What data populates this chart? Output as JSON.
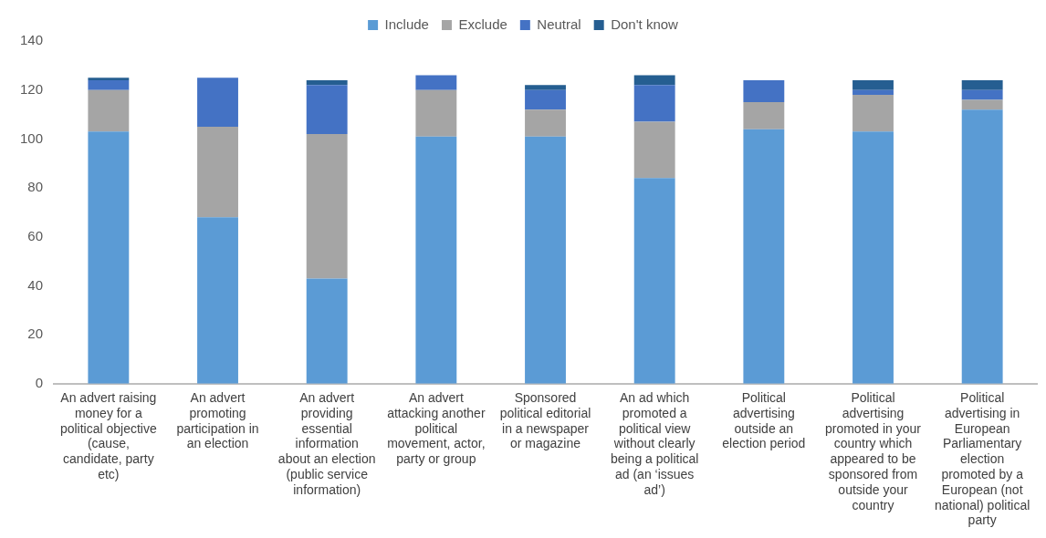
{
  "chart_data": {
    "type": "bar",
    "stacked": true,
    "legend": "top",
    "categories": [
      "An advert raising money for a political objective (cause, candidate, party etc)",
      "An advert promoting participation in an election",
      "An advert providing essential information about an election (public service information)",
      "An advert attacking another political movement, actor, party or group",
      "Sponsored political editorial in a newspaper or magazine",
      "An ad which promoted a political view without clearly being a political ad (an ‘issues ad’)",
      "Political advertising outside an election period",
      "Political advertising promoted in your country which appeared to be sponsored from outside your country",
      "Political advertising in European Parliamentary election promoted by a European (not national) political party"
    ],
    "series": [
      {
        "name": "Include",
        "color": "#5b9bd5",
        "values": [
          103,
          68,
          43,
          101,
          101,
          84,
          104,
          103,
          112
        ]
      },
      {
        "name": "Exclude",
        "color": "#a5a5a5",
        "values": [
          17,
          37,
          59,
          19,
          11,
          23,
          11,
          15,
          4
        ]
      },
      {
        "name": "Neutral",
        "color": "#4472c4",
        "values": [
          4,
          20,
          20,
          6,
          8,
          15,
          9,
          2,
          4
        ]
      },
      {
        "name": "Don't know",
        "color": "#255e91",
        "values": [
          1,
          0,
          2,
          0,
          2,
          4,
          0,
          4,
          4
        ]
      }
    ],
    "ylim": [
      0,
      140
    ],
    "yticks": [
      0,
      20,
      40,
      60,
      80,
      100,
      120,
      140
    ],
    "grid": false
  }
}
